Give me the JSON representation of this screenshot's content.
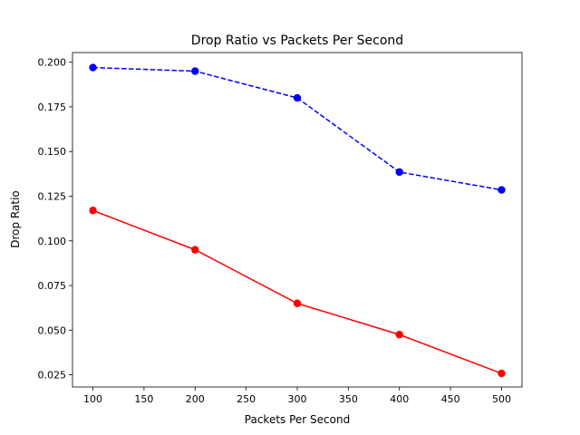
{
  "chart_data": {
    "type": "line",
    "title": "Drop Ratio vs Packets Per Second",
    "xlabel": "Packets Per Second",
    "ylabel": "Drop Ratio",
    "x": [
      100,
      200,
      300,
      400,
      500
    ],
    "xlim": [
      80,
      520
    ],
    "ylim": [
      0.0182,
      0.2054
    ],
    "xticks": [
      100,
      150,
      200,
      250,
      300,
      350,
      400,
      450,
      500
    ],
    "xtick_labels": [
      "100",
      "150",
      "200",
      "250",
      "300",
      "350",
      "400",
      "450",
      "500"
    ],
    "yticks": [
      0.025,
      0.05,
      0.075,
      0.1,
      0.125,
      0.15,
      0.175,
      0.2
    ],
    "ytick_labels": [
      "0.025",
      "0.050",
      "0.075",
      "0.100",
      "0.125",
      "0.150",
      "0.175",
      "0.200"
    ],
    "grid": false,
    "legend": false,
    "series": [
      {
        "values": [
          0.197,
          0.195,
          0.18,
          0.1385,
          0.1285
        ],
        "color": "#0000ff",
        "line_style": "dashed",
        "marker": "circle"
      },
      {
        "values": [
          0.117,
          0.095,
          0.065,
          0.0475,
          0.0258
        ],
        "color": "#ff0000",
        "line_style": "solid",
        "marker": "circle"
      }
    ]
  }
}
